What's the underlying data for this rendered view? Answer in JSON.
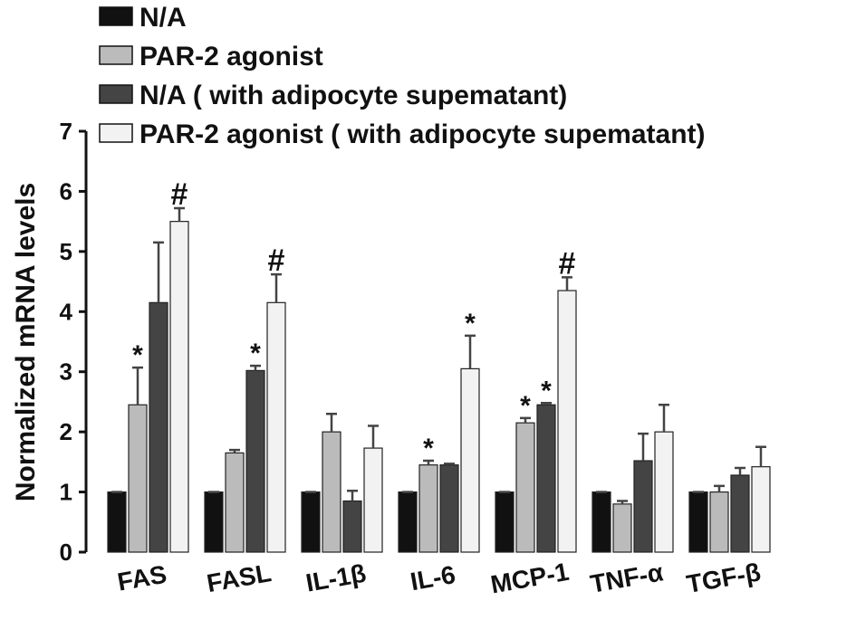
{
  "chart_data": {
    "type": "bar",
    "ylabel": "Normalized mRNA levels",
    "categories": [
      "FAS",
      "FASL",
      "IL-1β",
      "IL-6",
      "MCP-1",
      "TNF-α",
      "TGF-β"
    ],
    "series": [
      {
        "name": "N/A",
        "color": "#111111",
        "values": [
          1,
          1,
          1,
          1,
          1,
          1,
          1
        ],
        "errors": [
          0,
          0,
          0,
          0,
          0,
          0,
          0
        ],
        "annotations": [
          null,
          null,
          null,
          null,
          null,
          null,
          null
        ]
      },
      {
        "name": "PAR-2 agonist",
        "color": "#bbbbbb",
        "values": [
          2.45,
          1.65,
          2.0,
          1.45,
          2.15,
          0.8,
          1.0
        ],
        "errors": [
          0.62,
          0.05,
          0.3,
          0.07,
          0.08,
          0.05,
          0.1
        ],
        "annotations": [
          "*",
          null,
          null,
          "*",
          "*",
          null,
          null
        ]
      },
      {
        "name": "N/A ( with adipocyte supematant)",
        "color": "#444444",
        "values": [
          4.15,
          3.02,
          0.85,
          1.45,
          2.45,
          1.52,
          1.28
        ],
        "errors": [
          1.0,
          0.08,
          0.17,
          0.02,
          0.03,
          0.45,
          0.12
        ],
        "annotations": [
          null,
          "*",
          null,
          null,
          "*",
          null,
          null
        ]
      },
      {
        "name": "PAR-2 agonist ( with adipocyte supematant)",
        "color": "#f2f2f2",
        "values": [
          5.5,
          4.15,
          1.73,
          3.05,
          4.35,
          2.0,
          1.42
        ],
        "errors": [
          0.22,
          0.47,
          0.37,
          0.55,
          0.22,
          0.45,
          0.33
        ],
        "annotations": [
          "#",
          "#",
          null,
          "*",
          "#",
          null,
          null
        ]
      }
    ],
    "ylim": [
      0,
      7
    ],
    "yticks": [
      0,
      1,
      2,
      3,
      4,
      5,
      6,
      7
    ],
    "legend": "top-left"
  }
}
